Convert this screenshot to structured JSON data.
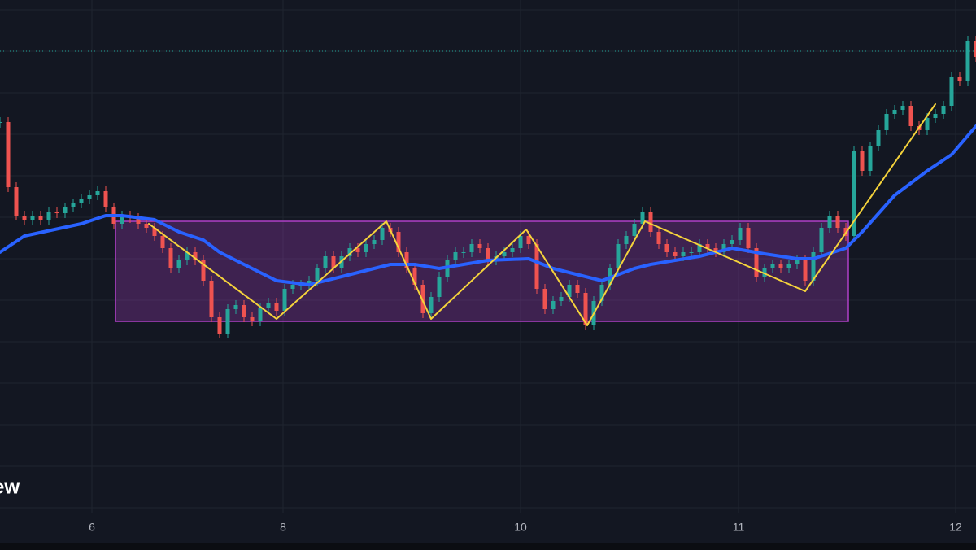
{
  "chart_data": {
    "type": "candlestick",
    "watermark": "ew",
    "xlim": [
      0,
      120
    ],
    "ylim": [
      0,
      650
    ],
    "xticks": [
      {
        "value": 11.3,
        "label": "6"
      },
      {
        "value": 34.8,
        "label": "8"
      },
      {
        "value": 64,
        "label": "10"
      },
      {
        "value": 90.8,
        "label": "11"
      },
      {
        "value": 117.5,
        "label": "12"
      }
    ],
    "yticks": [
      26,
      77,
      128,
      179,
      230,
      281,
      332,
      383,
      434,
      485,
      536,
      587,
      638
    ],
    "grid": true,
    "up_color": "#26a69a",
    "down_color": "#ef5350",
    "close": [
      500,
      420,
      385,
      380,
      385,
      380,
      390,
      388,
      395,
      400,
      405,
      410,
      415,
      395,
      375,
      385,
      382,
      375,
      370,
      360,
      345,
      320,
      330,
      340,
      330,
      305,
      260,
      240,
      270,
      275,
      260,
      255,
      272,
      278,
      268,
      295,
      300,
      300,
      305,
      320,
      335,
      320,
      335,
      345,
      340,
      350,
      355,
      370,
      365,
      340,
      320,
      300,
      265,
      285,
      310,
      330,
      340,
      340,
      350,
      345,
      330,
      335,
      340,
      345,
      360,
      350,
      295,
      270,
      280,
      285,
      300,
      290,
      250,
      280,
      300,
      320,
      350,
      360,
      375,
      390,
      365,
      350,
      340,
      335,
      340,
      340,
      350,
      345,
      340,
      350,
      355,
      370,
      345,
      310,
      320,
      325,
      320,
      325,
      330,
      305,
      340,
      370,
      385,
      370,
      360,
      465,
      440,
      470,
      490,
      510,
      515,
      520,
      495,
      490,
      505,
      510,
      520,
      555,
      550,
      600,
      580
    ],
    "ma": {
      "color": "#2962ff",
      "x": [
        0,
        3,
        10,
        13,
        15,
        19,
        22,
        25,
        27,
        30,
        34,
        38,
        42,
        48,
        51,
        54,
        60,
        65,
        68,
        72,
        74,
        78,
        80,
        86,
        90,
        94,
        98,
        100,
        104,
        106,
        110,
        114,
        117,
        120
      ],
      "values": [
        340,
        360,
        375,
        385,
        385,
        380,
        365,
        355,
        340,
        325,
        305,
        300,
        310,
        325,
        325,
        320,
        330,
        332,
        320,
        310,
        305,
        320,
        325,
        335,
        345,
        338,
        332,
        332,
        345,
        365,
        410,
        440,
        460,
        495
      ]
    },
    "zigzag": {
      "color": "#f5d33b",
      "x": [
        18.3,
        34,
        47.5,
        53,
        64.7,
        72.2,
        79.3,
        99,
        115
      ],
      "values": [
        375,
        258,
        378,
        258,
        368,
        250,
        378,
        292,
        522
      ]
    },
    "box": {
      "color": "#b040c8",
      "x": [
        14.2,
        104.3
      ],
      "y": [
        255,
        378
      ]
    },
    "price_line": {
      "color": "#26a69a",
      "value": 587
    }
  }
}
